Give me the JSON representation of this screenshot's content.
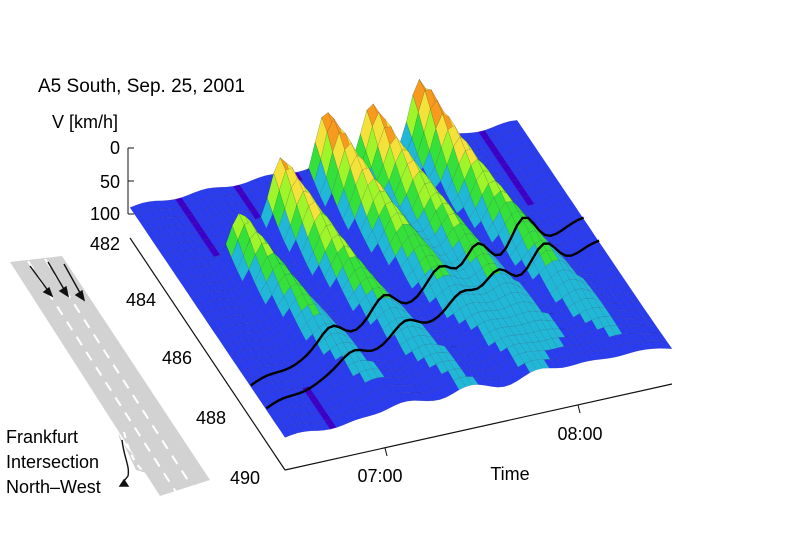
{
  "chart_data": {
    "type": "surface",
    "title": "A5 South, Sep. 25, 2001",
    "zlabel": "V [km/h]",
    "z_ticks": [
      "0",
      "50",
      "100"
    ],
    "z_axis_inverted": true,
    "y_ticks": [
      "482",
      "484",
      "486",
      "488",
      "490"
    ],
    "x_ticks": [
      "07:00",
      "08:00"
    ],
    "xlabel": "Time",
    "ylabel": "",
    "xlim": [
      "06:15",
      "08:50"
    ],
    "ylim": [
      482,
      490
    ],
    "zlim": [
      0,
      120
    ],
    "colormap": [
      "#3d00c8",
      "#2a3cf0",
      "#21b8d8",
      "#36e03a",
      "#9ff42a",
      "#f4e23a",
      "#f79a1e",
      "#d8461c"
    ],
    "peaks": [
      {
        "time": "06:42",
        "location_km": 484.5,
        "depth_kmh": 60
      },
      {
        "time": "07:05",
        "location_km": 483.6,
        "depth_kmh": 85
      },
      {
        "time": "07:30",
        "location_km": 482.9,
        "depth_kmh": 95
      },
      {
        "time": "07:48",
        "location_km": 482.8,
        "depth_kmh": 95
      },
      {
        "time": "08:10",
        "location_km": 482.6,
        "depth_kmh": 100
      }
    ],
    "annotation": {
      "labels": [
        "Frankfurt",
        "Intersection",
        "North–West"
      ]
    }
  }
}
